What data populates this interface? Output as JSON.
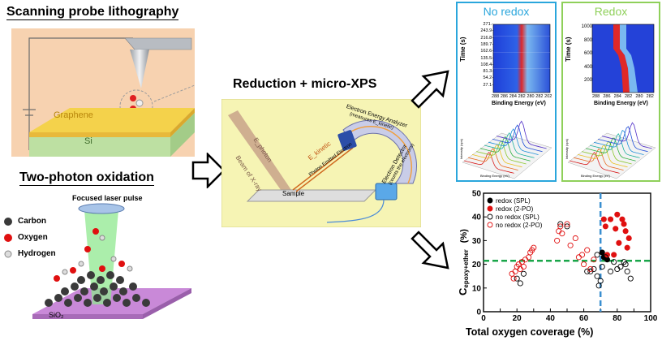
{
  "left": {
    "spl_title": "Scanning probe lithography",
    "spl_graphene": "Graphene",
    "spl_si": "Si",
    "tpo_title": "Two-photon oxidation",
    "tpo_laser": "Focused laser pulse",
    "legend": [
      "Carbon",
      "Oxygen",
      "Hydrogen"
    ],
    "sio2": "SiO₂"
  },
  "middle": {
    "title": "Reduction + micro-XPS",
    "analyzer": "Electron Energy Analyzer",
    "analyzer_sub": "(measures E_kinetic)",
    "detector": "Electron Detector",
    "detector_sub": "(counts the electrons)",
    "beam": "Beam of X-ray",
    "e_photon": "E_photon",
    "e_kinetic": "E_kinetic",
    "photoelectron": "Photon Emitted Electron",
    "sample": "Sample"
  },
  "colors": {
    "no_redox_border": "#2aa6dc",
    "redox_border": "#8fd05a",
    "no_redox_title": "#2aa6dc",
    "redox_title": "#8fd05a",
    "middle_bg": "#f6f4b4",
    "spl_bg": "#f7d2b0",
    "tpo_beam": "#8fe88f",
    "substrate": "#c989d8",
    "red_marker": "#e01010",
    "threshold_h": "#1aa64a",
    "threshold_v": "#3a8fd0"
  },
  "no_redox": {
    "title": "No redox",
    "ylabel": "Time (s)",
    "xlabel": "Binding Energy (eV)",
    "yticks": [
      "271.-",
      "243.9-",
      "216.8-",
      "189.7-",
      "162.6-",
      "135.5-",
      "108.4-",
      "81.3-",
      "54.2-",
      "27.1-"
    ],
    "xticks": [
      "288",
      "286",
      "284",
      "282",
      "280",
      "282",
      "202"
    ],
    "waterfall_ylabel": "Intensity (cps)",
    "waterfall_xlabel": "Binding Energy (eV)",
    "waterfall_xticks": [
      "292",
      "290",
      "288",
      "286",
      "284",
      "282",
      "280"
    ]
  },
  "redox": {
    "title": "Redox",
    "ylabel": "Time (s)",
    "xlabel": "Binding Energy (eV)",
    "yticks": [
      "1000",
      "800",
      "600",
      "400",
      "200"
    ],
    "xticks": [
      "288",
      "286",
      "284",
      "282",
      "280",
      "282"
    ],
    "waterfall_ylabel": "Intensity (cps)",
    "waterfall_xlabel": "Binding Energy (eV)"
  },
  "chart_data": {
    "type": "scatter",
    "xlabel": "Total oxygen coverage (%)",
    "ylabel": "C",
    "ylabel_sub": "epoxy+ether",
    "ylabel_unit": "(%)",
    "xlim": [
      0,
      100
    ],
    "ylim": [
      0,
      50
    ],
    "xticks": [
      "0",
      "10",
      "20",
      "30",
      "40",
      "50",
      "60",
      "70",
      "80",
      "90",
      "100"
    ],
    "yticks": [
      "0",
      "10",
      "20",
      "30",
      "40",
      "50"
    ],
    "legend_position": "top-left",
    "thresholds": {
      "x": 70,
      "y": 21.5
    },
    "series": [
      {
        "name": "redox (SPL)",
        "marker": "filled",
        "color": "#000000",
        "x": [
          71,
          72,
          74
        ],
        "y": [
          25,
          23,
          22
        ]
      },
      {
        "name": "redox (2-PO)",
        "marker": "filled",
        "color": "#e01010",
        "x": [
          72,
          73,
          74,
          76,
          78,
          79,
          80,
          81,
          83,
          84,
          85,
          86,
          87
        ],
        "y": [
          39,
          36,
          24,
          39,
          24,
          35,
          41,
          29,
          39,
          37,
          34,
          27,
          31
        ]
      },
      {
        "name": "no redox (SPL)",
        "marker": "open",
        "color": "#000000",
        "x": [
          20,
          22,
          24,
          46,
          50,
          62,
          64,
          66,
          68,
          68,
          69,
          70,
          71,
          73,
          76,
          78,
          80,
          82,
          84,
          85,
          86,
          88
        ],
        "y": [
          14,
          12,
          16,
          37,
          36,
          17,
          17,
          18,
          15,
          24,
          11,
          13,
          19,
          23,
          17,
          21,
          18,
          19,
          21,
          20,
          17,
          14
        ]
      },
      {
        "name": "no redox (2-PO)",
        "marker": "open",
        "color": "#e01010",
        "x": [
          17,
          18,
          19,
          20,
          21,
          22,
          23,
          24,
          25,
          27,
          28,
          29,
          30,
          44,
          45,
          46,
          47,
          50,
          52,
          55,
          57,
          59,
          60,
          62,
          64,
          66
        ],
        "y": [
          16,
          14,
          17,
          19,
          20,
          18,
          21,
          19,
          22,
          23,
          25,
          26,
          27,
          30,
          34,
          36,
          33,
          37,
          28,
          31,
          23,
          24,
          20,
          26,
          18,
          22
        ]
      }
    ]
  }
}
